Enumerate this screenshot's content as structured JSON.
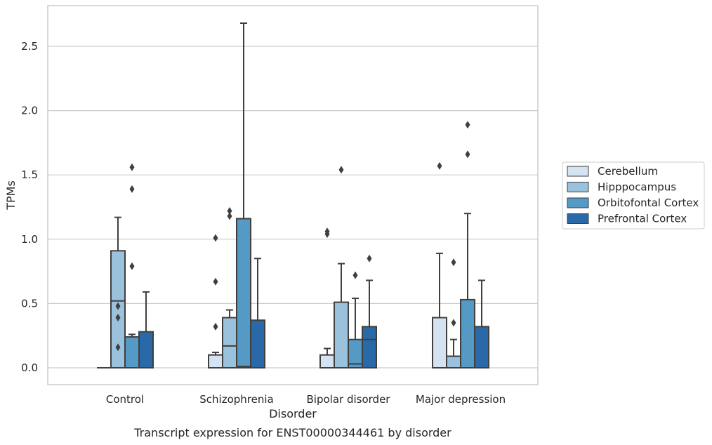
{
  "caption": "Transcript expression for ENST00000344461 by disorder",
  "chart_data": {
    "type": "box",
    "title": "",
    "xlabel": "Disorder",
    "ylabel": "TPMs",
    "ylim": [
      -0.13,
      2.82
    ],
    "yticks": [
      "0.0",
      "0.5",
      "1.0",
      "1.5",
      "2.0",
      "2.5"
    ],
    "grid": "horizontal",
    "legend_position": "right",
    "categories": [
      "Control",
      "Schizophrenia",
      "Bipolar disorder",
      "Major depression"
    ],
    "series": [
      {
        "name": "Cerebellum",
        "color": "#d3e3f2",
        "boxes": [
          {
            "q1": 0.0,
            "median": 0.0,
            "q3": 0.0,
            "whislo": 0.0,
            "whishi": 0.0,
            "fliers": []
          },
          {
            "q1": 0.0,
            "median": 0.0,
            "q3": 0.1,
            "whislo": 0.0,
            "whishi": 0.12,
            "fliers": [
              0.32,
              0.67,
              1.01
            ]
          },
          {
            "q1": 0.0,
            "median": 0.0,
            "q3": 0.1,
            "whislo": 0.0,
            "whishi": 0.15,
            "fliers": [
              1.04,
              1.06
            ]
          },
          {
            "q1": 0.0,
            "median": 0.0,
            "q3": 0.39,
            "whislo": 0.0,
            "whishi": 0.89,
            "fliers": [
              1.57
            ]
          }
        ]
      },
      {
        "name": "Hipppocampus",
        "color": "#9ac2dc",
        "boxes": [
          {
            "q1": 0.0,
            "median": 0.52,
            "q3": 0.91,
            "whislo": 0.0,
            "whishi": 1.17,
            "fliers": [
              0.16,
              0.39,
              0.48
            ]
          },
          {
            "q1": 0.0,
            "median": 0.17,
            "q3": 0.39,
            "whislo": 0.0,
            "whishi": 0.45,
            "fliers": [
              1.18,
              1.22
            ]
          },
          {
            "q1": 0.0,
            "median": 0.0,
            "q3": 0.51,
            "whislo": 0.0,
            "whishi": 0.81,
            "fliers": [
              1.54
            ]
          },
          {
            "q1": 0.0,
            "median": 0.0,
            "q3": 0.09,
            "whislo": 0.0,
            "whishi": 0.22,
            "fliers": [
              0.35,
              0.82
            ]
          }
        ]
      },
      {
        "name": "Orbitofontal Cortex",
        "color": "#5599c5",
        "boxes": [
          {
            "q1": 0.0,
            "median": 0.0,
            "q3": 0.24,
            "whislo": 0.0,
            "whishi": 0.26,
            "fliers": [
              0.79,
              1.39,
              1.56
            ]
          },
          {
            "q1": 0.0,
            "median": 0.01,
            "q3": 1.16,
            "whislo": 0.0,
            "whishi": 2.68,
            "fliers": []
          },
          {
            "q1": 0.0,
            "median": 0.03,
            "q3": 0.22,
            "whislo": 0.0,
            "whishi": 0.54,
            "fliers": [
              0.72
            ]
          },
          {
            "q1": 0.0,
            "median": 0.0,
            "q3": 0.53,
            "whislo": 0.0,
            "whishi": 1.2,
            "fliers": [
              1.66,
              1.89
            ]
          }
        ]
      },
      {
        "name": "Prefrontal Cortex",
        "color": "#2a69a8",
        "boxes": [
          {
            "q1": 0.0,
            "median": 0.0,
            "q3": 0.28,
            "whislo": 0.0,
            "whishi": 0.59,
            "fliers": []
          },
          {
            "q1": 0.0,
            "median": 0.0,
            "q3": 0.37,
            "whislo": 0.0,
            "whishi": 0.85,
            "fliers": []
          },
          {
            "q1": 0.0,
            "median": 0.22,
            "q3": 0.32,
            "whislo": 0.0,
            "whishi": 0.68,
            "fliers": [
              0.85
            ]
          },
          {
            "q1": 0.0,
            "median": 0.0,
            "q3": 0.32,
            "whislo": 0.0,
            "whishi": 0.68,
            "fliers": []
          }
        ]
      }
    ]
  }
}
